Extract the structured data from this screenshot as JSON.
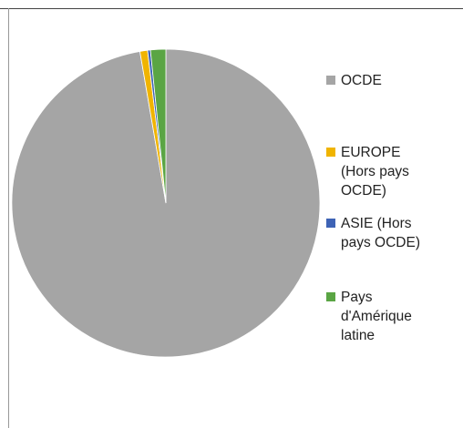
{
  "chart_data": {
    "type": "pie",
    "categories": [
      "OCDE",
      "EUROPE\n(Hors pays\nOCDE)",
      "ASIE (Hors\npays OCDE)",
      "Pays\nd'Amérique\nlatine"
    ],
    "values": [
      97.3,
      0.8,
      0.3,
      1.6
    ],
    "colors": [
      "#a5a5a5",
      "#f0b400",
      "#3e63b5",
      "#5aa544"
    ],
    "start_angle_deg": 0,
    "direction": "counterclockwise-from-top",
    "legend_position": "right"
  }
}
